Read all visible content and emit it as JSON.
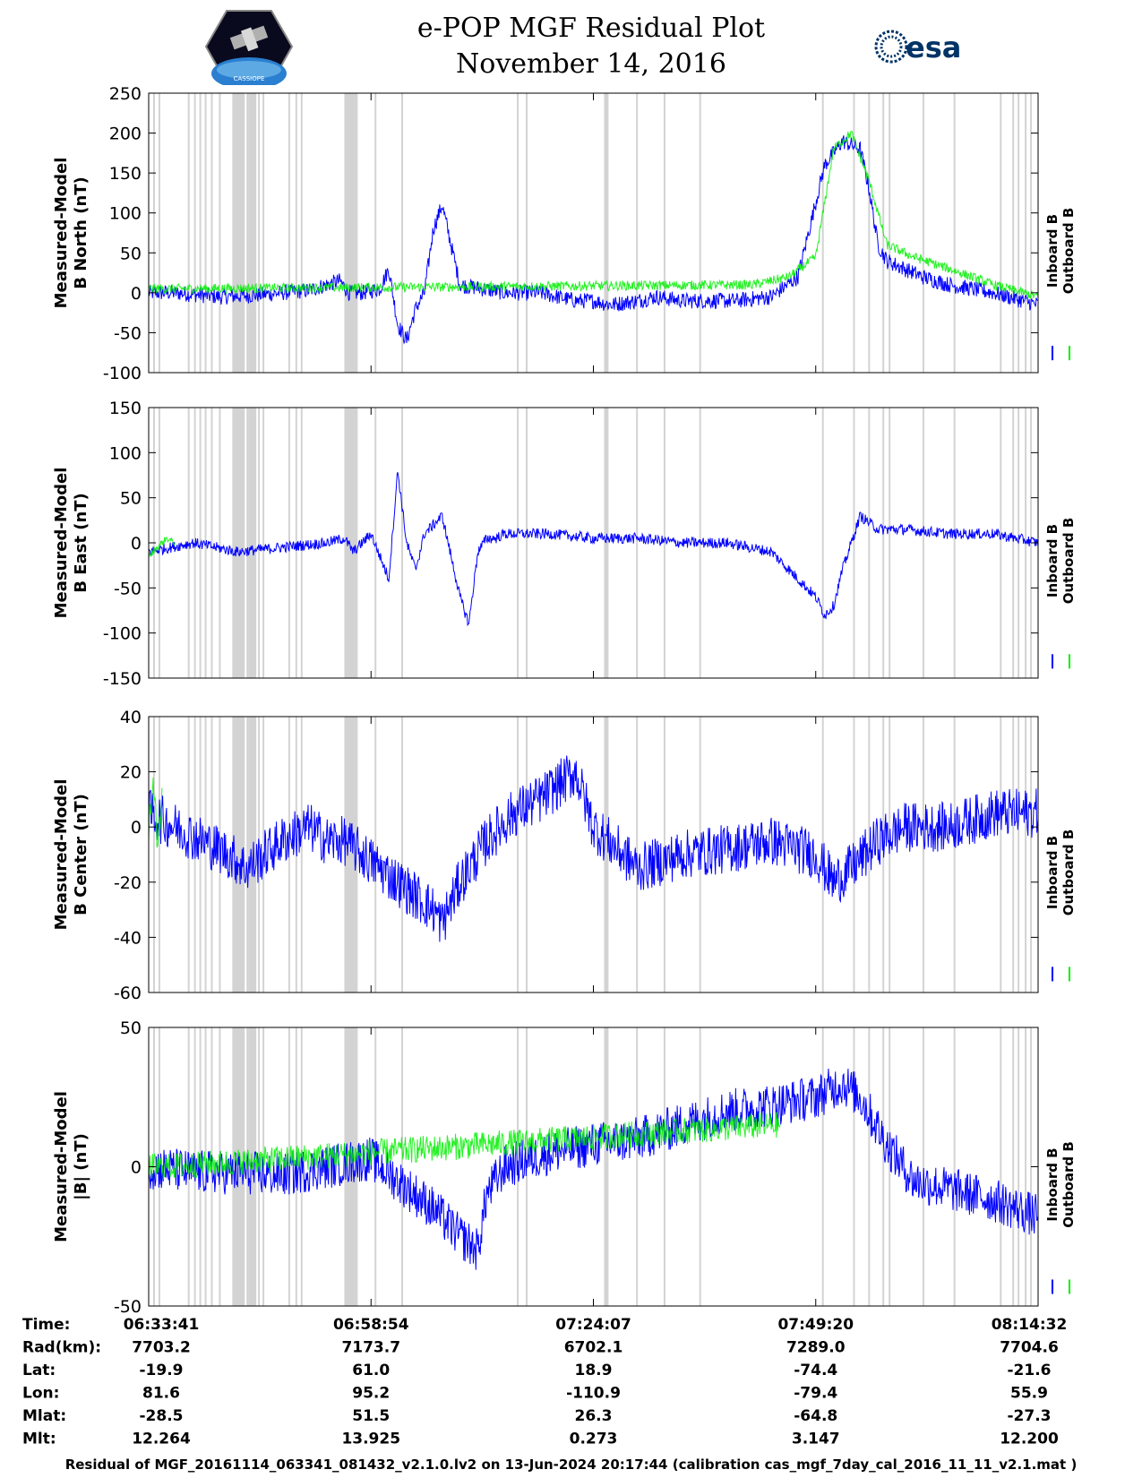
{
  "header": {
    "title_line1": "e-POP MGF Residual Plot",
    "title_line2": "November 14, 2016",
    "logo_left": "cassiope-mission-logo",
    "logo_left_text": "CASSIOPE",
    "logo_right": "esa-logo",
    "logo_right_text": "esa"
  },
  "colors": {
    "inboard": "#0000ff",
    "outboard": "#00ee00",
    "gaps": "#d3d3d3",
    "axes": "#000000"
  },
  "chart_data": [
    {
      "type": "line",
      "ylabel": [
        "Measured-Model",
        "B North (nT)"
      ],
      "ylim": [
        -100,
        250
      ],
      "yticks": [
        250,
        200,
        150,
        100,
        50,
        0,
        -50,
        -100
      ],
      "legend": {
        "placement": "right",
        "entries": [
          "Inboard B",
          "Outboard B"
        ]
      },
      "series": [
        {
          "name": "Inboard B",
          "x": [
            0,
            3,
            8,
            12,
            15,
            18,
            20,
            21.5,
            22.5,
            24,
            26,
            27,
            28,
            29,
            30,
            31,
            32,
            33,
            35,
            40,
            44,
            48,
            50,
            52,
            55,
            57,
            60,
            63,
            66,
            70,
            73,
            76,
            78,
            80,
            81,
            82,
            83,
            84,
            85,
            87,
            90,
            95,
            100
          ],
          "y": [
            0,
            0,
            -5,
            -3,
            0,
            3,
            10,
            15,
            0,
            0,
            5,
            30,
            -40,
            -60,
            -20,
            0,
            80,
            110,
            10,
            0,
            0,
            -10,
            -10,
            -15,
            -10,
            -5,
            -10,
            -10,
            -10,
            -5,
            20,
            160,
            190,
            180,
            130,
            60,
            40,
            35,
            30,
            20,
            10,
            0,
            -15
          ]
        },
        {
          "name": "Outboard B",
          "x": [
            0,
            2,
            68,
            72,
            75,
            77,
            79,
            81,
            83,
            86,
            90,
            95,
            100
          ],
          "y": [
            5,
            5,
            10,
            20,
            45,
            180,
            200,
            140,
            60,
            45,
            30,
            10,
            -5
          ]
        }
      ]
    },
    {
      "type": "line",
      "ylabel": [
        "Measured-Model",
        "B East (nT)"
      ],
      "ylim": [
        -150,
        150
      ],
      "yticks": [
        150,
        100,
        50,
        0,
        -50,
        -100,
        -150
      ],
      "legend": {
        "placement": "right",
        "entries": [
          "Inboard B",
          "Outboard B"
        ]
      },
      "series": [
        {
          "name": "Inboard B",
          "x": [
            0,
            5,
            10,
            15,
            20,
            22,
            23,
            25,
            27,
            28,
            29,
            30,
            31,
            33,
            35,
            36,
            37,
            38,
            39,
            40,
            45,
            50,
            55,
            60,
            65,
            70,
            72,
            75,
            76,
            77,
            78,
            80,
            82,
            85,
            90,
            95,
            100
          ],
          "y": [
            -10,
            0,
            -10,
            -5,
            0,
            5,
            -10,
            10,
            -40,
            80,
            0,
            -30,
            10,
            30,
            -60,
            -90,
            -10,
            5,
            5,
            10,
            10,
            5,
            5,
            0,
            0,
            -10,
            -30,
            -60,
            -80,
            -70,
            -30,
            30,
            15,
            15,
            10,
            10,
            0
          ]
        },
        {
          "name": "Outboard B",
          "x": [
            0,
            1,
            2,
            3
          ],
          "y": [
            -15,
            -5,
            5,
            0
          ]
        }
      ]
    },
    {
      "type": "line",
      "ylabel": [
        "Measured-Model",
        "B Center (nT)"
      ],
      "ylim": [
        -60,
        40
      ],
      "yticks": [
        40,
        20,
        0,
        -20,
        -40,
        -60
      ],
      "legend": {
        "placement": "right",
        "entries": [
          "Inboard B",
          "Outboard B"
        ]
      },
      "series": [
        {
          "name": "Inboard B",
          "x": [
            0,
            3,
            6,
            9,
            11,
            13,
            15,
            18,
            20,
            22,
            24,
            26,
            28,
            30,
            32,
            33,
            35,
            38,
            41,
            44,
            48,
            50,
            55,
            60,
            65,
            70,
            75,
            77,
            79,
            82,
            85,
            90,
            95,
            100
          ],
          "y": [
            5,
            0,
            -5,
            -10,
            -15,
            -10,
            -5,
            0,
            -5,
            -5,
            -10,
            -15,
            -20,
            -25,
            -30,
            -35,
            -20,
            -5,
            5,
            10,
            20,
            0,
            -15,
            -10,
            -8,
            -5,
            -10,
            -20,
            -15,
            -5,
            0,
            0,
            5,
            5
          ]
        },
        {
          "name": "Outboard B",
          "x": [
            0,
            0.5,
            1,
            1.5
          ],
          "y": [
            0,
            15,
            -5,
            10
          ]
        }
      ]
    },
    {
      "type": "line",
      "ylabel": [
        "Measured-Model",
        "|B| (nT)"
      ],
      "ylim": [
        -50,
        50
      ],
      "yticks": [
        50,
        0,
        -50
      ],
      "legend": {
        "placement": "right",
        "entries": [
          "Inboard B",
          "Outboard B"
        ]
      },
      "series": [
        {
          "name": "Inboard B",
          "x": [
            0,
            5,
            10,
            15,
            20,
            25,
            28,
            32,
            35,
            37,
            38,
            40,
            45,
            50,
            55,
            60,
            65,
            70,
            75,
            78,
            80,
            83,
            86,
            90,
            95,
            100
          ],
          "y": [
            0,
            -2,
            -2,
            -3,
            0,
            3,
            -5,
            -15,
            -25,
            -30,
            -10,
            0,
            5,
            8,
            10,
            15,
            20,
            22,
            25,
            30,
            25,
            8,
            -5,
            -8,
            -12,
            -18
          ]
        },
        {
          "name": "Outboard B",
          "x": [
            0,
            1,
            2,
            70,
            71
          ],
          "y": [
            0,
            0,
            0,
            15,
            15
          ]
        }
      ]
    }
  ],
  "shared_x": {
    "data_range": [
      0,
      100
    ],
    "tick_positions": [
      0,
      25,
      50,
      75,
      100
    ]
  },
  "gaps_x": [
    0.6,
    1.2,
    4.5,
    5.2,
    5.8,
    6.4,
    7.1,
    8.0,
    9.5,
    10.0,
    10.6,
    11.1,
    11.5,
    12.0,
    12.4,
    12.9,
    15.8,
    16.6,
    17.2,
    22.1,
    22.6,
    25.5,
    28.5,
    41.5,
    42.5,
    51.4,
    54.9,
    58.0,
    62.0,
    75.8,
    79.3,
    81.0,
    82.6,
    83.3,
    87.1,
    90.6,
    95.8,
    97.2,
    97.8,
    98.6,
    99.2
  ],
  "bands_x": [
    [
      9.5,
      10.8
    ],
    [
      11.2,
      12.0
    ],
    [
      22.1,
      23.5
    ],
    [
      51.2,
      51.7
    ]
  ],
  "ephemeris": {
    "row_labels": [
      "Time:",
      "Rad(km):",
      "Lat:",
      "Lon:",
      "Mlat:",
      "Mlt:"
    ],
    "columns": [
      [
        "06:33:41",
        "7703.2",
        "-19.9",
        "81.6",
        "-28.5",
        "12.264"
      ],
      [
        "06:58:54",
        "7173.7",
        "61.0",
        "95.2",
        "51.5",
        "13.925"
      ],
      [
        "07:24:07",
        "6702.1",
        "18.9",
        "-110.9",
        "26.3",
        "0.273"
      ],
      [
        "07:49:20",
        "7289.0",
        "-74.4",
        "-79.4",
        "-64.8",
        "3.147"
      ],
      [
        "08:14:32",
        "7704.6",
        "-21.6",
        "55.9",
        "-27.3",
        "12.200"
      ]
    ]
  },
  "footer": "Residual of MGF_20161114_063341_081432_v2.1.0.lv2 on 13-Jun-2024 20:17:44 (calibration cas_mgf_7day_cal_2016_11_11_v2.1.mat )"
}
